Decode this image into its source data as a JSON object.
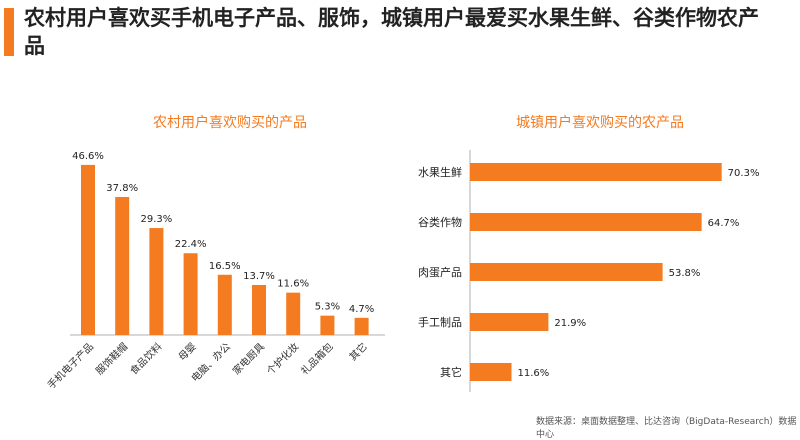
{
  "title": "农村用户喜欢买手机电子产品、服饰，城镇用户最爱买水果生鲜、谷类作物农产品",
  "source": "数据来源：桌面数据整理、比达咨询（BigData-Research）数据中心",
  "colors": {
    "bar": "#f47b20",
    "accent": "#f47b20"
  },
  "chart_data": [
    {
      "type": "bar",
      "title": "农村用户喜欢购买的产品",
      "categories": [
        "手机电子产品",
        "服饰鞋帽",
        "食品饮料",
        "母婴",
        "电脑、办公",
        "家电厨具",
        "个护化妆",
        "礼品箱包",
        "其它"
      ],
      "values": [
        46.6,
        37.8,
        29.3,
        22.4,
        16.5,
        13.7,
        11.6,
        5.3,
        4.7
      ],
      "labels": [
        "46.6%",
        "37.8%",
        "29.3%",
        "22.4%",
        "16.5%",
        "13.7%",
        "11.6%",
        "5.3%",
        "4.7%"
      ]
    },
    {
      "type": "bar",
      "orientation": "horizontal",
      "title": "城镇用户喜欢购买的农产品",
      "categories": [
        "水果生鲜",
        "谷类作物",
        "肉蛋产品",
        "手工制品",
        "其它"
      ],
      "values": [
        70.3,
        64.7,
        53.8,
        21.9,
        11.6
      ],
      "labels": [
        "70.3%",
        "64.7%",
        "53.8%",
        "21.9%",
        "11.6%"
      ]
    }
  ]
}
